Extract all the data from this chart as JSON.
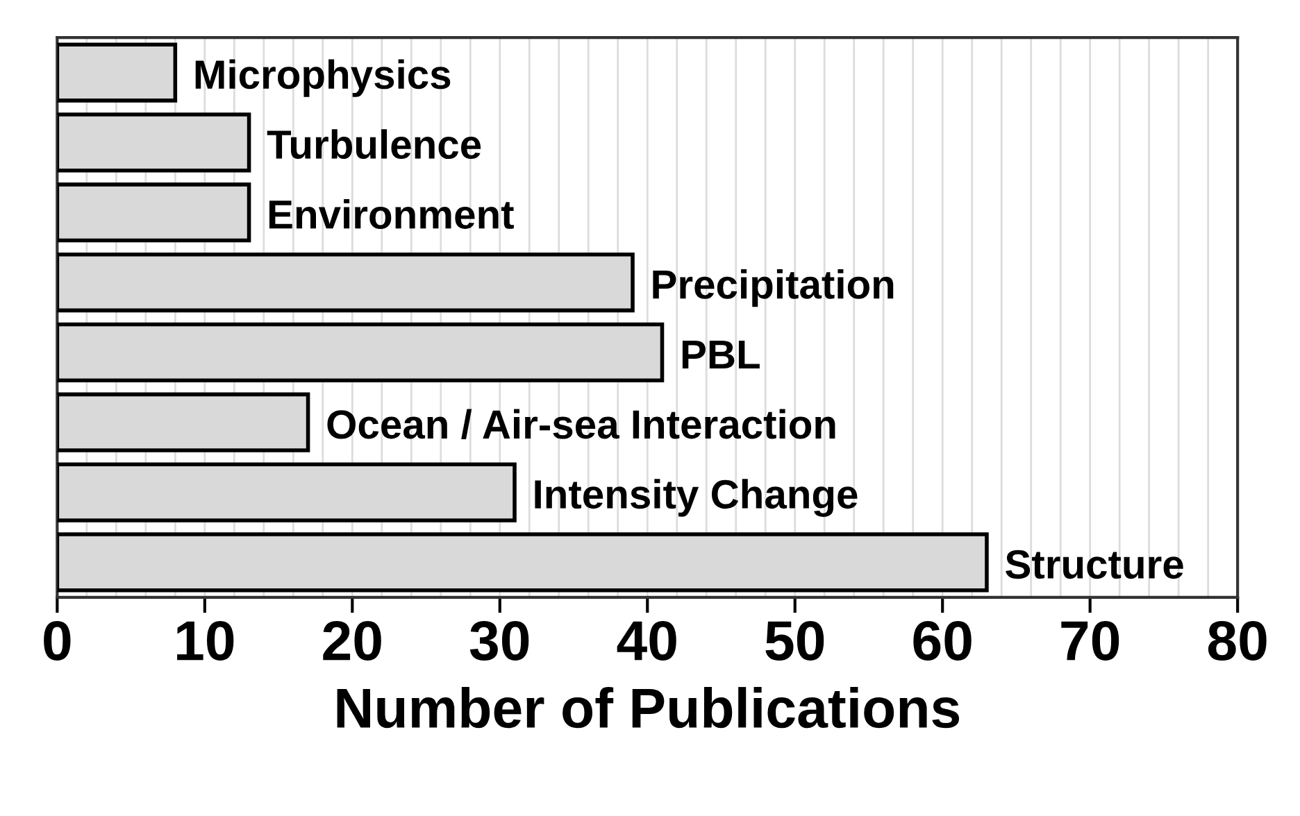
{
  "chart_data": {
    "type": "bar",
    "orientation": "horizontal",
    "xlabel": "Number of Publications",
    "categories": [
      "Microphysics",
      "Turbulence",
      "Environment",
      "Precipitation",
      "PBL",
      "Ocean / Air-sea Interaction",
      "Intensity Change",
      "Structure"
    ],
    "values": [
      8,
      13,
      13,
      39,
      41,
      17,
      31,
      63
    ],
    "color": "#d9d9d9",
    "xlim": [
      0,
      80
    ],
    "xticks": [
      0,
      {
        "value": 2,
        "label": null
      },
      {
        "value": 4,
        "label": null
      },
      {
        "value": 6,
        "label": null
      },
      {
        "value": 8,
        "label": null
      },
      10,
      {
        "value": 12,
        "label": null
      },
      {
        "value": 14,
        "label": null
      },
      {
        "value": 16,
        "label": null
      },
      {
        "value": 18,
        "label": null
      },
      20,
      {
        "value": 22,
        "label": null
      },
      {
        "value": 24,
        "label": null
      },
      {
        "value": 26,
        "label": null
      },
      {
        "value": 28,
        "label": null
      },
      30,
      {
        "value": 32,
        "label": null
      },
      {
        "value": 34,
        "label": null
      },
      {
        "value": 36,
        "label": null
      },
      {
        "value": 38,
        "label": null
      },
      40,
      {
        "value": 42,
        "label": null
      },
      {
        "value": 44,
        "label": null
      },
      {
        "value": 46,
        "label": null
      },
      {
        "value": 48,
        "label": null
      },
      50,
      {
        "value": 52,
        "label": null
      },
      {
        "value": 54,
        "label": null
      },
      {
        "value": 56,
        "label": null
      },
      {
        "value": 58,
        "label": null
      },
      60,
      {
        "value": 62,
        "label": null
      },
      {
        "value": 64,
        "label": null
      },
      {
        "value": 66,
        "label": null
      },
      {
        "value": 68,
        "label": null
      },
      70,
      {
        "value": 72,
        "label": null
      },
      {
        "value": 74,
        "label": null
      },
      {
        "value": 76,
        "label": null
      },
      {
        "value": 78,
        "label": null
      },
      80
    ],
    "grid": "x",
    "tick_labels": "x"
  }
}
